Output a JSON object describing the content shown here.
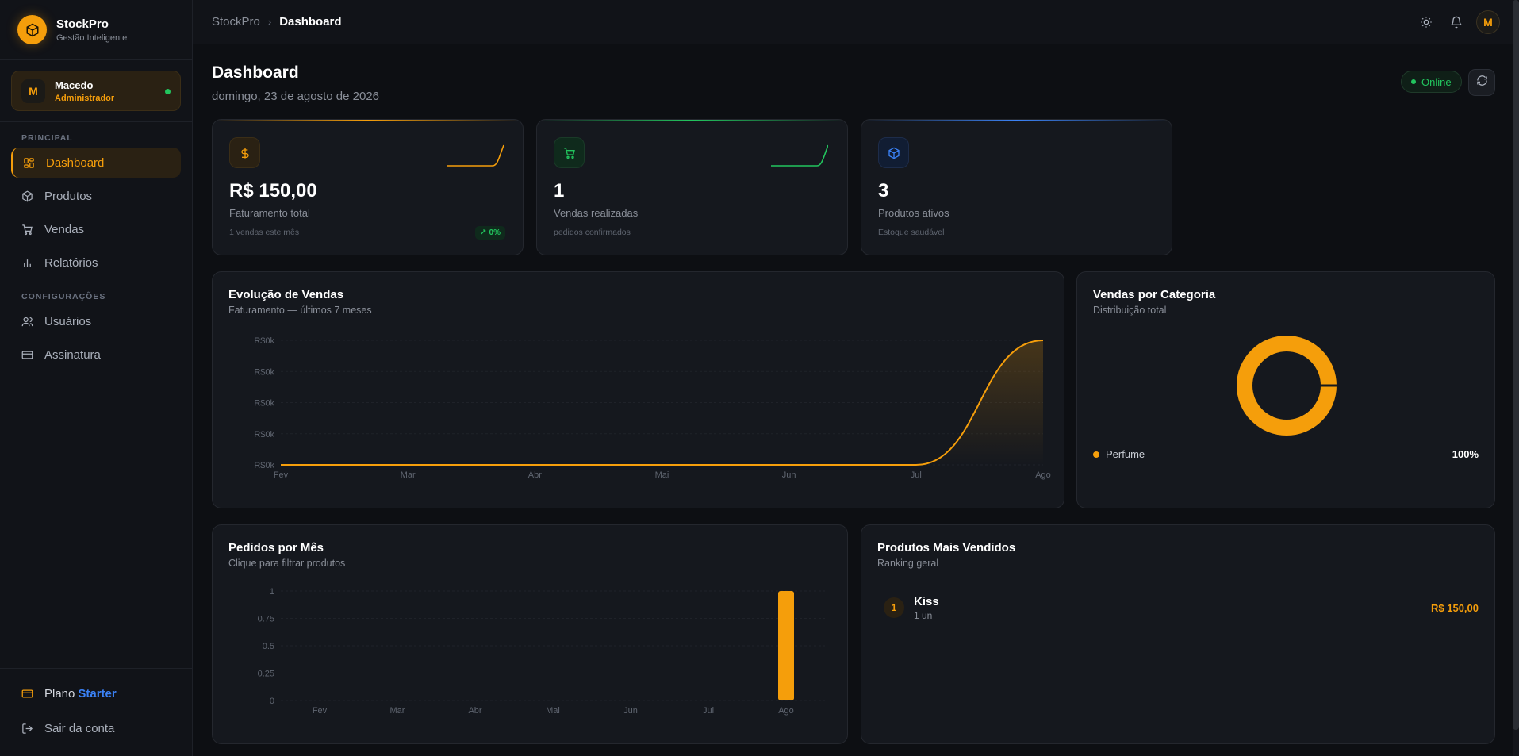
{
  "brand": {
    "name": "StockPro",
    "subtitle": "Gestão Inteligente"
  },
  "user": {
    "initial": "M",
    "name": "Macedo",
    "role": "Administrador"
  },
  "nav": {
    "section_main": "PRINCIPAL",
    "section_config": "CONFIGURAÇÕES",
    "items_main": [
      {
        "label": "Dashboard",
        "icon": "grid-icon",
        "active": true
      },
      {
        "label": "Produtos",
        "icon": "box-icon"
      },
      {
        "label": "Vendas",
        "icon": "cart-icon"
      },
      {
        "label": "Relatórios",
        "icon": "bar-chart-icon"
      }
    ],
    "items_config": [
      {
        "label": "Usuários",
        "icon": "users-icon"
      },
      {
        "label": "Assinatura",
        "icon": "credit-card-icon"
      }
    ]
  },
  "sidebar_bottom": {
    "plan_label": "Plano",
    "plan_name": "Starter",
    "logout": "Sair da conta"
  },
  "breadcrumb": {
    "root": "StockPro",
    "current": "Dashboard"
  },
  "topbar": {
    "avatar_initial": "M"
  },
  "page": {
    "title": "Dashboard",
    "date": "domingo, 23 de agosto de 2026",
    "status": "Online"
  },
  "colors": {
    "accent": "#f59e0b",
    "green": "#22c55e",
    "blue": "#3b82f6"
  },
  "stats": [
    {
      "value": "R$ 150,00",
      "label": "Faturamento total",
      "note": "1 vendas este mês",
      "badge": "0%",
      "color": "#f59e0b",
      "icon": "dollar-icon"
    },
    {
      "value": "1",
      "label": "Vendas realizadas",
      "note": "pedidos confirmados",
      "color": "#22c55e",
      "icon": "cart-icon"
    },
    {
      "value": "3",
      "label": "Produtos ativos",
      "note": "Estoque saudável",
      "color": "#3b82f6",
      "icon": "box-icon"
    }
  ],
  "sales_chart": {
    "title": "Evolução de Vendas",
    "subtitle": "Faturamento — últimos 7 meses",
    "y_ticks": [
      "R$0k",
      "R$0k",
      "R$0k",
      "R$0k",
      "R$0k"
    ]
  },
  "category_chart": {
    "title": "Vendas por Categoria",
    "subtitle": "Distribuição total",
    "legend_label": "Perfume",
    "legend_pct": "100%"
  },
  "orders_chart": {
    "title": "Pedidos por Mês",
    "subtitle": "Clique para filtrar produtos"
  },
  "top_products": {
    "title": "Produtos Mais Vendidos",
    "subtitle": "Ranking geral",
    "items": [
      {
        "rank": "1",
        "name": "Kiss",
        "qty": "1 un",
        "value": "R$ 150,00"
      }
    ]
  },
  "chart_data": [
    {
      "type": "area",
      "title": "Evolução de Vendas",
      "categories": [
        "Fev",
        "Mar",
        "Abr",
        "Mai",
        "Jun",
        "Jul",
        "Ago"
      ],
      "series": [
        {
          "values": [
            0,
            0,
            0,
            0,
            0,
            0,
            150
          ]
        }
      ],
      "ylabel": "",
      "y_tick_labels": [
        "R$0k",
        "R$0k",
        "R$0k",
        "R$0k",
        "R$0k"
      ],
      "ylim": [
        0,
        150
      ],
      "grid": true
    },
    {
      "type": "pie",
      "title": "Vendas por Categoria",
      "categories": [
        "Perfume"
      ],
      "values": [
        100
      ],
      "donut": true
    },
    {
      "type": "bar",
      "title": "Pedidos por Mês",
      "categories": [
        "Fev",
        "Mar",
        "Abr",
        "Mai",
        "Jun",
        "Jul",
        "Ago"
      ],
      "values": [
        0,
        0,
        0,
        0,
        0,
        0,
        1
      ],
      "y_ticks": [
        "1",
        "0.75",
        "0.5",
        "0.25",
        "0"
      ],
      "ylim": [
        0,
        1
      ],
      "grid": true
    }
  ]
}
